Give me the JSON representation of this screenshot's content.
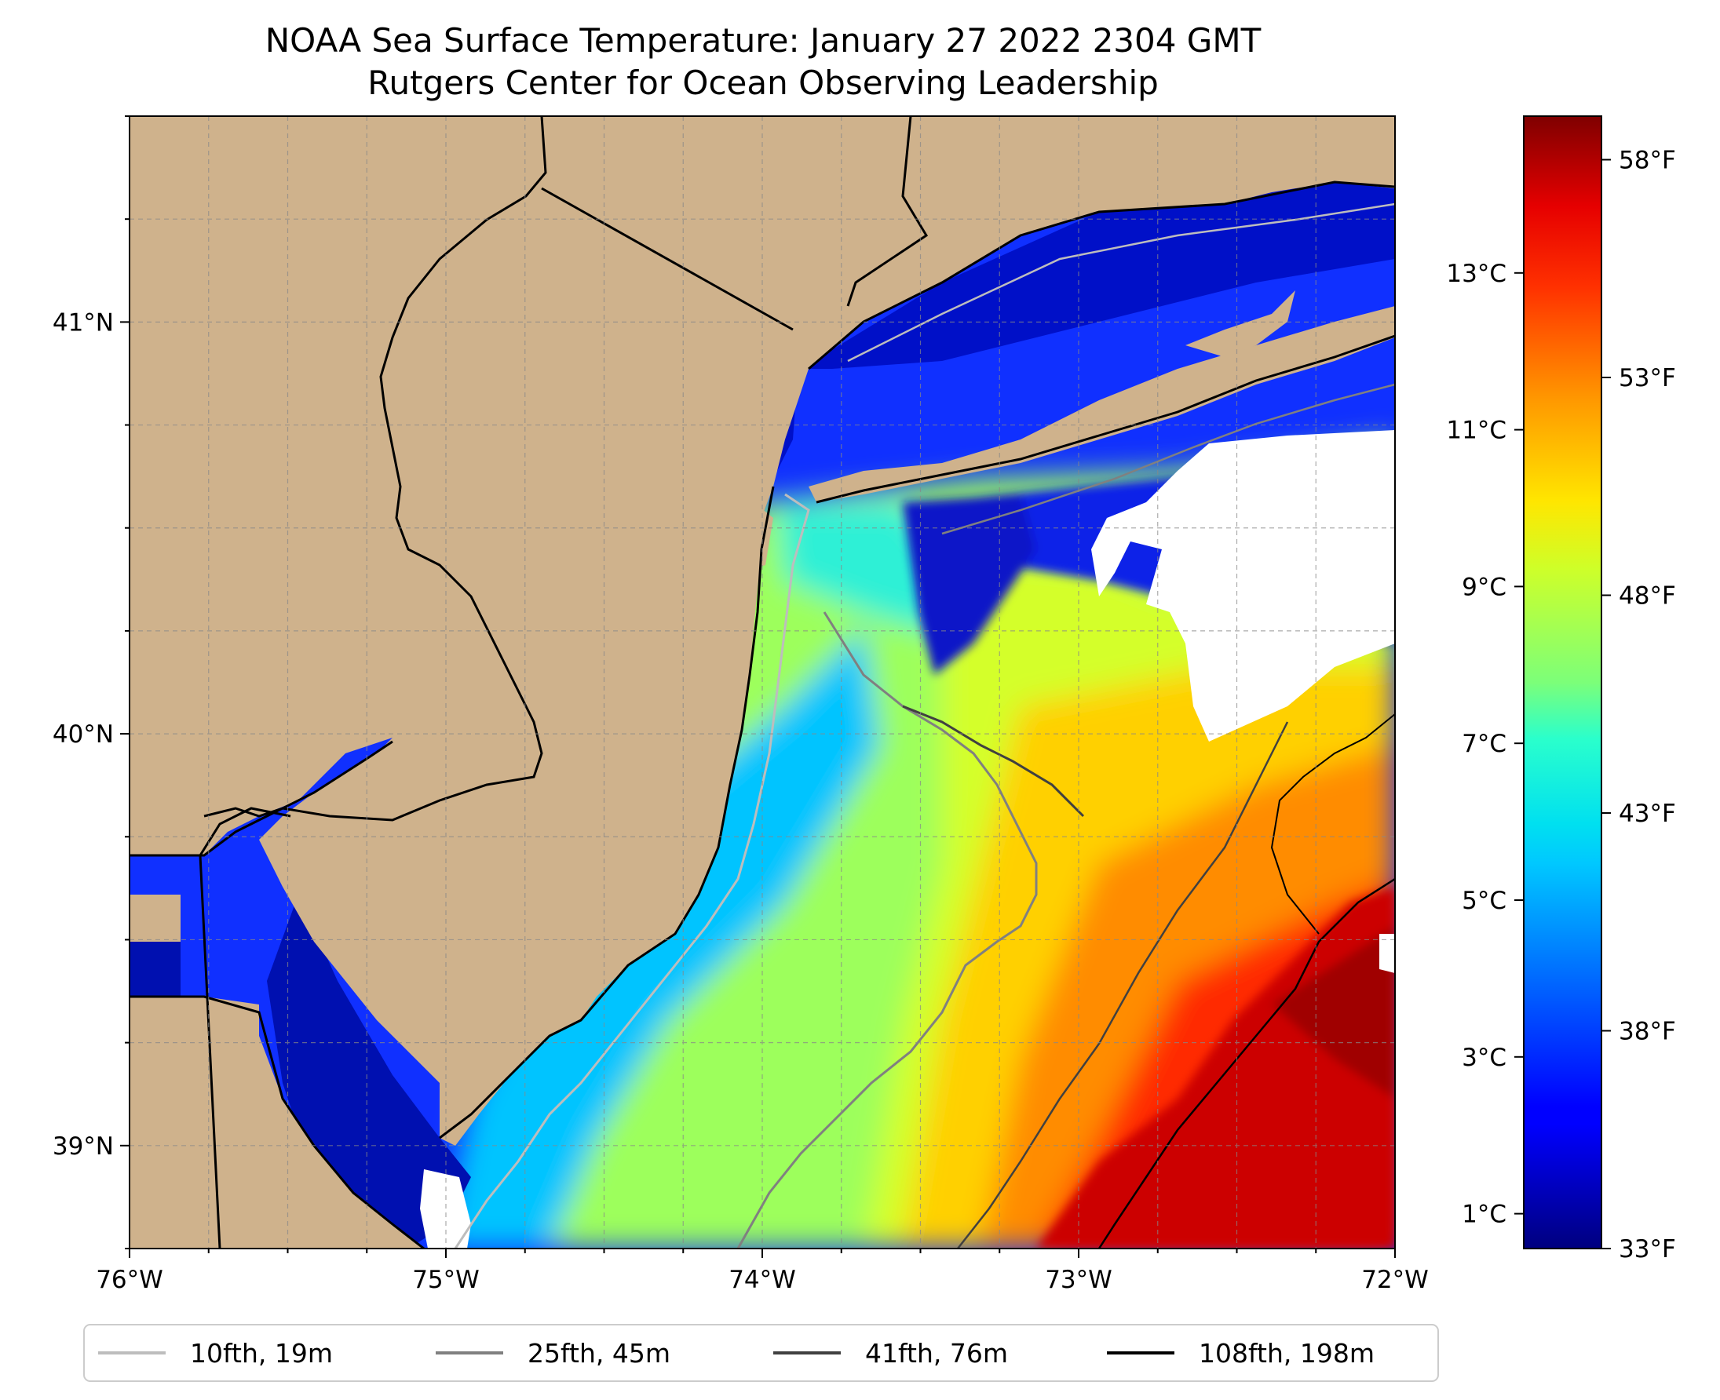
{
  "title": {
    "line1": "NOAA Sea Surface Temperature: January 27 2022 2304 GMT",
    "line2": "Rutgers Center for Ocean Observing Leadership"
  },
  "map": {
    "lon_range": [
      -76,
      -72
    ],
    "lat_range": [
      38.75,
      41.5
    ],
    "lon_ticks": [
      {
        "value": -76,
        "label": "76°W"
      },
      {
        "value": -75,
        "label": "75°W"
      },
      {
        "value": -74,
        "label": "74°W"
      },
      {
        "value": -73,
        "label": "73°W"
      },
      {
        "value": -72,
        "label": "72°W"
      }
    ],
    "lat_ticks": [
      {
        "value": 41,
        "label": "41°N"
      },
      {
        "value": 40,
        "label": "40°N"
      },
      {
        "value": 39,
        "label": "39°N"
      }
    ],
    "land_color": "#cfb28c",
    "no_data_color": "#ffffff",
    "grid": "dashed"
  },
  "colorbar": {
    "celsius_ticks": [
      {
        "value": 1,
        "label": "1°C"
      },
      {
        "value": 3,
        "label": "3°C"
      },
      {
        "value": 5,
        "label": "5°C"
      },
      {
        "value": 7,
        "label": "7°C"
      },
      {
        "value": 9,
        "label": "9°C"
      },
      {
        "value": 11,
        "label": "11°C"
      },
      {
        "value": 13,
        "label": "13°C"
      }
    ],
    "fahrenheit_ticks": [
      {
        "value": 33,
        "label": "33°F"
      },
      {
        "value": 38,
        "label": "38°F"
      },
      {
        "value": 43,
        "label": "43°F"
      },
      {
        "value": 48,
        "label": "48°F"
      },
      {
        "value": 53,
        "label": "53°F"
      },
      {
        "value": 58,
        "label": "58°F"
      }
    ],
    "range_f": [
      33,
      59
    ],
    "colormap": "jet"
  },
  "legend": {
    "items": [
      {
        "label": "10fth, 19m",
        "color": "#bdbdbd"
      },
      {
        "label": "25fth, 45m",
        "color": "#808080"
      },
      {
        "label": "41fth, 76m",
        "color": "#404040"
      },
      {
        "label": "108fth, 198m",
        "color": "#000000"
      }
    ]
  }
}
